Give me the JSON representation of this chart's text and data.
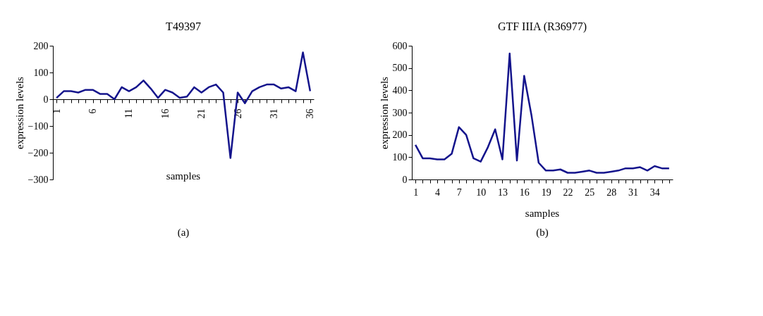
{
  "chart_data": [
    {
      "type": "line",
      "title": "T49397",
      "xlabel": "samples",
      "ylabel": "expression levels",
      "categories": [
        "1",
        null,
        null,
        null,
        null,
        "6",
        null,
        null,
        null,
        null,
        "11",
        null,
        null,
        null,
        null,
        "16",
        null,
        null,
        null,
        null,
        "21",
        null,
        null,
        null,
        null,
        "26",
        null,
        null,
        null,
        null,
        "31",
        null,
        null,
        null,
        null,
        "36"
      ],
      "series": [
        {
          "color": "#14148c",
          "values": [
            5,
            30,
            30,
            25,
            35,
            35,
            20,
            20,
            0,
            45,
            30,
            45,
            70,
            40,
            5,
            35,
            25,
            5,
            10,
            45,
            25,
            45,
            55,
            25,
            -220,
            25,
            -15,
            30,
            45,
            55,
            55,
            40,
            45,
            30,
            175,
            30
          ]
        }
      ],
      "ylim": [
        -300,
        200
      ],
      "yticks": [
        -300,
        -200,
        -100,
        0,
        100,
        200
      ],
      "grid": false,
      "marker": "none",
      "line_style": "solid",
      "annotations": [
        "(a)"
      ]
    },
    {
      "type": "line",
      "title": "GTF IIIA (R36977)",
      "xlabel": "samples",
      "ylabel": "expression levels",
      "categories": [
        "1",
        null,
        null,
        "4",
        null,
        null,
        "7",
        null,
        null,
        "10",
        null,
        null,
        "13",
        null,
        null,
        "16",
        null,
        null,
        "19",
        null,
        null,
        "22",
        null,
        null,
        "25",
        null,
        null,
        "28",
        null,
        null,
        "31",
        null,
        null,
        "34",
        null,
        null
      ],
      "series": [
        {
          "color": "#14148c",
          "values": [
            155,
            95,
            95,
            90,
            90,
            115,
            235,
            200,
            95,
            80,
            145,
            225,
            90,
            565,
            85,
            465,
            290,
            75,
            40,
            40,
            45,
            30,
            30,
            35,
            40,
            30,
            30,
            35,
            40,
            50,
            50,
            55,
            40,
            60,
            50,
            50
          ]
        }
      ],
      "ylim": [
        0,
        600
      ],
      "yticks": [
        0,
        100,
        200,
        300,
        400,
        500,
        600
      ],
      "grid": false,
      "marker": "none",
      "line_style": "solid",
      "annotations": [
        "(b)"
      ]
    }
  ]
}
